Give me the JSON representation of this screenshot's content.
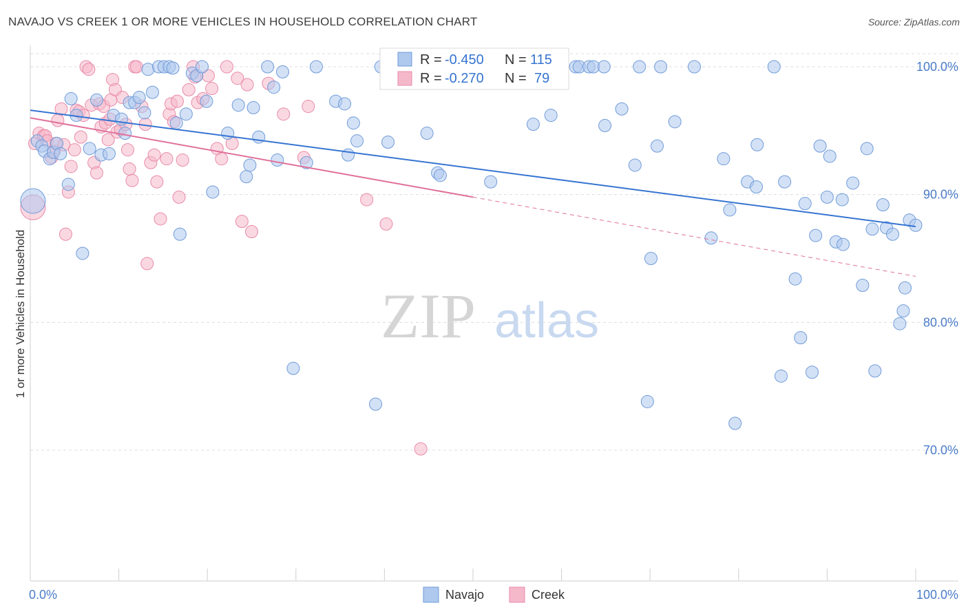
{
  "title": "NAVAJO VS CREEK 1 OR MORE VEHICLES IN HOUSEHOLD CORRELATION CHART",
  "source": "Source: ZipAtlas.com",
  "watermark": {
    "zip": "ZIP",
    "atlas": "atlas"
  },
  "colors": {
    "navajo_fill": "#aec8ee",
    "navajo_stroke": "#6f9bd8",
    "navajo_line": "#3574d1",
    "creek_fill": "#f5b8cb",
    "creek_stroke": "#e88aa8",
    "creek_line": "#e0709a",
    "label_blue": "#4a7cc9",
    "grid": "#dcdcdc"
  },
  "stats": {
    "navajo": {
      "r_label": "R =",
      "r_value": "-0.450",
      "n_label": "N =",
      "n_value": "115"
    },
    "creek": {
      "r_label": "R =",
      "r_value": "-0.270",
      "n_label": "N =",
      "n_value": "79"
    }
  },
  "chart_data": {
    "type": "scatter",
    "title": "NAVAJO VS CREEK 1 OR MORE VEHICLES IN HOUSEHOLD CORRELATION CHART",
    "xlabel": "",
    "ylabel": "1 or more Vehicles in Household",
    "xlim": [
      0,
      100
    ],
    "ylim": [
      60,
      102
    ],
    "x_tick_labels": [
      "0.0%",
      "100.0%"
    ],
    "y_ticks": [
      70,
      80,
      90,
      100
    ],
    "y_tick_labels": [
      "70.0%",
      "80.0%",
      "90.0%",
      "100.0%"
    ],
    "grid": true,
    "legend_position": "bottom-center",
    "legend": [
      "Navajo",
      "Creek"
    ],
    "series": [
      {
        "name": "Navajo",
        "trend": {
          "x": [
            0,
            100
          ],
          "y": [
            96.6,
            87.5
          ]
        },
        "points": [
          [
            0.3,
            89.5
          ],
          [
            0.8,
            94.2
          ],
          [
            1.3,
            93.8
          ],
          [
            1.6,
            93.4
          ],
          [
            2.2,
            92.8
          ],
          [
            2.6,
            93.3
          ],
          [
            3.0,
            94.0
          ],
          [
            3.4,
            93.2
          ],
          [
            4.3,
            90.8
          ],
          [
            4.6,
            97.5
          ],
          [
            5.2,
            96.2
          ],
          [
            5.9,
            85.4
          ],
          [
            6.7,
            93.6
          ],
          [
            7.5,
            97.4
          ],
          [
            8.0,
            93.1
          ],
          [
            8.9,
            93.2
          ],
          [
            9.4,
            96.2
          ],
          [
            10.3,
            95.9
          ],
          [
            10.7,
            94.8
          ],
          [
            11.2,
            97.2
          ],
          [
            11.8,
            97.2
          ],
          [
            12.3,
            97.6
          ],
          [
            12.9,
            96.4
          ],
          [
            13.3,
            99.8
          ],
          [
            13.8,
            98.0
          ],
          [
            14.5,
            100
          ],
          [
            15.1,
            100
          ],
          [
            15.7,
            100
          ],
          [
            16.1,
            99.9
          ],
          [
            16.5,
            95.6
          ],
          [
            16.9,
            86.9
          ],
          [
            17.6,
            96.3
          ],
          [
            18.3,
            99.5
          ],
          [
            18.8,
            99.3
          ],
          [
            19.4,
            100
          ],
          [
            19.9,
            97.3
          ],
          [
            20.6,
            90.2
          ],
          [
            22.3,
            94.8
          ],
          [
            23.5,
            97.0
          ],
          [
            24.4,
            91.4
          ],
          [
            24.8,
            92.3
          ],
          [
            25.2,
            96.8
          ],
          [
            25.8,
            94.5
          ],
          [
            26.8,
            100
          ],
          [
            27.5,
            98.4
          ],
          [
            27.9,
            92.7
          ],
          [
            28.5,
            99.6
          ],
          [
            29.7,
            76.4
          ],
          [
            31.2,
            92.5
          ],
          [
            32.3,
            100
          ],
          [
            34.5,
            97.3
          ],
          [
            35.5,
            97.1
          ],
          [
            35.9,
            93.1
          ],
          [
            36.5,
            95.6
          ],
          [
            36.9,
            94.2
          ],
          [
            39.0,
            73.6
          ],
          [
            39.6,
            100
          ],
          [
            40.4,
            94.1
          ],
          [
            41.2,
            100
          ],
          [
            44.8,
            94.8
          ],
          [
            46.0,
            91.7
          ],
          [
            46.3,
            91.5
          ],
          [
            49.2,
            100
          ],
          [
            52.0,
            91.0
          ],
          [
            56.0,
            100
          ],
          [
            56.8,
            95.5
          ],
          [
            58.8,
            96.2
          ],
          [
            61.6,
            100
          ],
          [
            62.0,
            100
          ],
          [
            63.1,
            100
          ],
          [
            63.6,
            100
          ],
          [
            64.8,
            100
          ],
          [
            64.9,
            95.4
          ],
          [
            66.8,
            96.7
          ],
          [
            68.3,
            92.3
          ],
          [
            68.8,
            100
          ],
          [
            69.7,
            73.8
          ],
          [
            70.1,
            85.0
          ],
          [
            70.8,
            93.8
          ],
          [
            71.2,
            100
          ],
          [
            72.8,
            95.7
          ],
          [
            75.0,
            100
          ],
          [
            76.9,
            86.6
          ],
          [
            78.3,
            92.8
          ],
          [
            79.0,
            88.8
          ],
          [
            79.6,
            72.1
          ],
          [
            81.0,
            91.0
          ],
          [
            82.0,
            90.6
          ],
          [
            82.1,
            93.9
          ],
          [
            84.0,
            100
          ],
          [
            84.8,
            75.8
          ],
          [
            85.2,
            91.0
          ],
          [
            86.4,
            83.4
          ],
          [
            87.0,
            78.8
          ],
          [
            87.5,
            89.3
          ],
          [
            88.3,
            76.1
          ],
          [
            88.7,
            86.8
          ],
          [
            89.2,
            93.8
          ],
          [
            90.0,
            89.8
          ],
          [
            90.3,
            93.0
          ],
          [
            91.0,
            86.3
          ],
          [
            91.7,
            89.6
          ],
          [
            91.8,
            86.1
          ],
          [
            92.9,
            90.9
          ],
          [
            94.0,
            82.9
          ],
          [
            94.5,
            93.6
          ],
          [
            95.1,
            87.3
          ],
          [
            95.4,
            76.2
          ],
          [
            96.3,
            89.2
          ],
          [
            96.7,
            87.4
          ],
          [
            97.4,
            86.9
          ],
          [
            98.2,
            79.9
          ],
          [
            98.6,
            80.9
          ],
          [
            98.8,
            82.7
          ],
          [
            99.3,
            88.0
          ],
          [
            100.0,
            87.6
          ]
        ]
      },
      {
        "name": "Creek",
        "trend": {
          "x": [
            0,
            50
          ],
          "y": [
            96.0,
            89.8
          ]
        },
        "trend_extension": {
          "x": [
            50,
            100
          ],
          "y": [
            89.8,
            83.6
          ]
        },
        "points": [
          [
            0.3,
            89.0
          ],
          [
            0.5,
            94.0
          ],
          [
            1.0,
            94.8
          ],
          [
            1.5,
            94.6
          ],
          [
            1.7,
            94.6
          ],
          [
            1.9,
            94.2
          ],
          [
            2.4,
            92.9
          ],
          [
            2.7,
            93.4
          ],
          [
            2.9,
            94.0
          ],
          [
            3.1,
            95.8
          ],
          [
            3.5,
            96.7
          ],
          [
            3.8,
            93.9
          ],
          [
            4.0,
            86.9
          ],
          [
            4.3,
            90.2
          ],
          [
            4.6,
            92.2
          ],
          [
            5.0,
            93.5
          ],
          [
            5.2,
            96.6
          ],
          [
            5.5,
            96.5
          ],
          [
            5.7,
            94.5
          ],
          [
            6.0,
            96.2
          ],
          [
            6.3,
            100
          ],
          [
            6.6,
            99.8
          ],
          [
            6.9,
            97.0
          ],
          [
            7.2,
            92.5
          ],
          [
            7.5,
            91.7
          ],
          [
            7.8,
            97.1
          ],
          [
            8.0,
            95.3
          ],
          [
            8.3,
            96.9
          ],
          [
            8.5,
            95.6
          ],
          [
            8.8,
            94.3
          ],
          [
            9.0,
            95.9
          ],
          [
            9.1,
            97.4
          ],
          [
            9.3,
            99.0
          ],
          [
            9.6,
            98.2
          ],
          [
            9.8,
            94.9
          ],
          [
            10.2,
            95.1
          ],
          [
            10.4,
            97.6
          ],
          [
            10.8,
            95.5
          ],
          [
            11.0,
            93.5
          ],
          [
            11.2,
            92.0
          ],
          [
            11.5,
            91.1
          ],
          [
            11.8,
            100
          ],
          [
            12.0,
            100
          ],
          [
            12.6,
            96.9
          ],
          [
            13.0,
            95.5
          ],
          [
            13.2,
            84.6
          ],
          [
            13.6,
            92.5
          ],
          [
            14.0,
            93.1
          ],
          [
            14.3,
            91.0
          ],
          [
            14.7,
            88.1
          ],
          [
            15.4,
            92.8
          ],
          [
            15.7,
            96.3
          ],
          [
            15.9,
            97.1
          ],
          [
            16.2,
            95.7
          ],
          [
            16.6,
            97.3
          ],
          [
            16.8,
            89.8
          ],
          [
            17.2,
            92.7
          ],
          [
            17.9,
            98.2
          ],
          [
            18.4,
            100
          ],
          [
            18.6,
            99.2
          ],
          [
            18.9,
            97.2
          ],
          [
            19.5,
            97.5
          ],
          [
            20.1,
            99.3
          ],
          [
            20.5,
            98.3
          ],
          [
            21.1,
            93.6
          ],
          [
            21.6,
            92.8
          ],
          [
            22.2,
            100
          ],
          [
            22.8,
            94.0
          ],
          [
            23.4,
            99.1
          ],
          [
            23.9,
            87.9
          ],
          [
            24.5,
            98.6
          ],
          [
            25.0,
            87.1
          ],
          [
            26.9,
            98.7
          ],
          [
            28.6,
            96.3
          ],
          [
            30.9,
            92.9
          ],
          [
            31.4,
            96.9
          ],
          [
            38.0,
            89.6
          ],
          [
            40.2,
            87.7
          ],
          [
            44.1,
            70.1
          ]
        ]
      }
    ]
  },
  "legend": {
    "navajo": "Navajo",
    "creek": "Creek"
  }
}
